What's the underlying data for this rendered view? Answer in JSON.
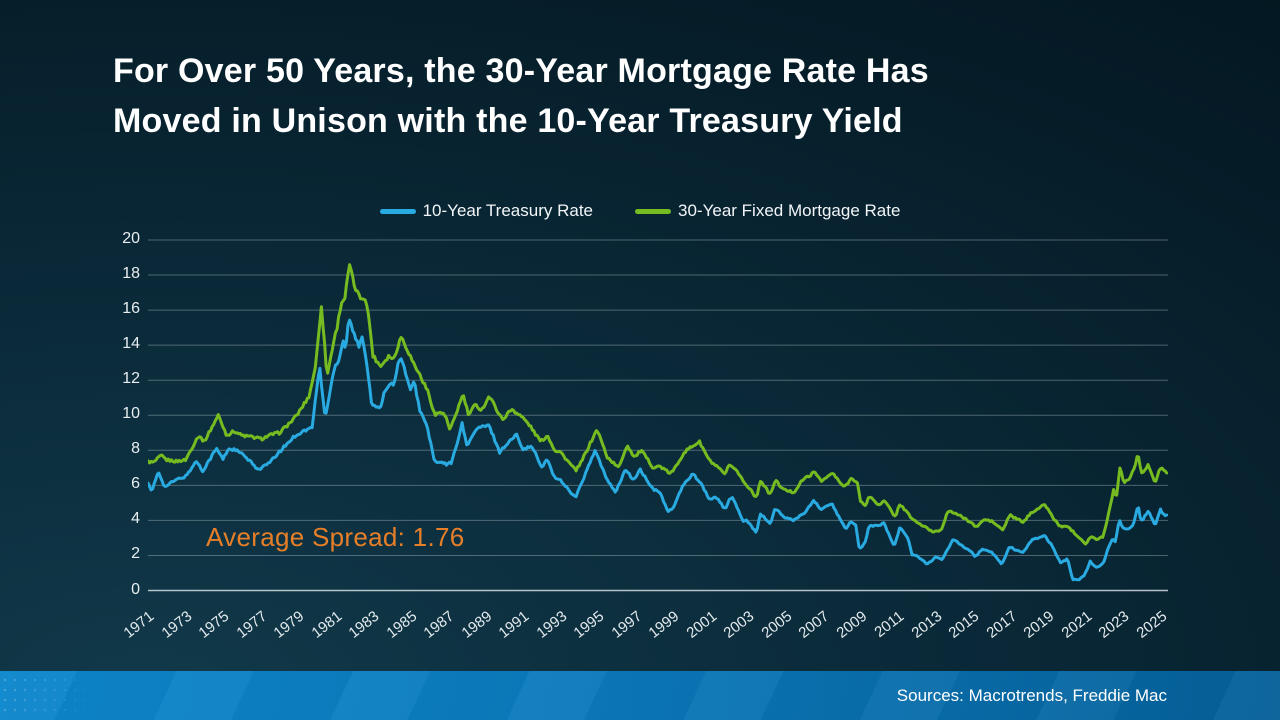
{
  "slide": {
    "title_lines": [
      "For Over 50 Years, the 30-Year Mortgage Rate Has",
      "Moved in Unison with the 10-Year Treasury Yield"
    ],
    "annotation": {
      "text": "Average Spread: 1.76",
      "color": "#E77F28"
    },
    "footer": {
      "sources": "Sources: Macrotrends, Freddie Mac",
      "bar_color_left": "#0C87CC",
      "bar_color_right": "#056099"
    },
    "background_color": "#0a2938"
  },
  "chart_data": {
    "type": "line",
    "title": "",
    "xlabel": "",
    "ylabel": "",
    "x_axis": {
      "start": 1971,
      "end": 2025.4,
      "tick_years": [
        1971,
        1973,
        1975,
        1977,
        1979,
        1981,
        1983,
        1985,
        1987,
        1989,
        1991,
        1993,
        1995,
        1997,
        1999,
        2001,
        2003,
        2005,
        2007,
        2009,
        2011,
        2013,
        2015,
        2017,
        2019,
        2021,
        2023,
        2025
      ]
    },
    "y_axis": {
      "min": 0,
      "max": 20,
      "ticks": [
        0,
        2,
        4,
        6,
        8,
        10,
        12,
        14,
        16,
        18,
        20
      ]
    },
    "grid": true,
    "legend_position": "top-center",
    "annotation": "Average Spread: 1.76",
    "series": [
      {
        "name": "10-Year Treasury Rate",
        "color": "#29ABE2",
        "points": [
          [
            1971.0,
            6.2
          ],
          [
            1971.2,
            5.6
          ],
          [
            1971.55,
            6.8
          ],
          [
            1971.9,
            5.9
          ],
          [
            1972.3,
            6.2
          ],
          [
            1972.7,
            6.4
          ],
          [
            1973.0,
            6.5
          ],
          [
            1973.6,
            7.4
          ],
          [
            1973.9,
            6.8
          ],
          [
            1974.3,
            7.5
          ],
          [
            1974.65,
            8.1
          ],
          [
            1975.0,
            7.5
          ],
          [
            1975.3,
            8.1
          ],
          [
            1975.7,
            8.0
          ],
          [
            1976.0,
            7.8
          ],
          [
            1976.9,
            6.9
          ],
          [
            1977.5,
            7.3
          ],
          [
            1978.0,
            7.9
          ],
          [
            1978.8,
            8.8
          ],
          [
            1979.3,
            9.1
          ],
          [
            1979.75,
            9.3
          ],
          [
            1980.15,
            12.8
          ],
          [
            1980.45,
            9.8
          ],
          [
            1980.95,
            12.8
          ],
          [
            1981.2,
            13.2
          ],
          [
            1981.4,
            14.3
          ],
          [
            1981.55,
            13.8
          ],
          [
            1981.7,
            15.6
          ],
          [
            1982.0,
            14.6
          ],
          [
            1982.25,
            13.9
          ],
          [
            1982.45,
            14.5
          ],
          [
            1982.75,
            12.3
          ],
          [
            1982.95,
            10.5
          ],
          [
            1983.15,
            10.5
          ],
          [
            1983.45,
            10.4
          ],
          [
            1983.6,
            11.4
          ],
          [
            1983.9,
            11.8
          ],
          [
            1984.1,
            11.8
          ],
          [
            1984.45,
            13.4
          ],
          [
            1984.75,
            12.4
          ],
          [
            1985.0,
            11.4
          ],
          [
            1985.2,
            11.9
          ],
          [
            1985.5,
            10.3
          ],
          [
            1985.9,
            9.3
          ],
          [
            1986.3,
            7.3
          ],
          [
            1986.65,
            7.3
          ],
          [
            1986.9,
            7.2
          ],
          [
            1987.2,
            7.3
          ],
          [
            1987.75,
            9.5
          ],
          [
            1988.0,
            8.3
          ],
          [
            1988.6,
            9.3
          ],
          [
            1989.2,
            9.4
          ],
          [
            1989.75,
            7.9
          ],
          [
            1990.0,
            8.2
          ],
          [
            1990.65,
            8.9
          ],
          [
            1991.0,
            8.1
          ],
          [
            1991.5,
            8.2
          ],
          [
            1992.0,
            7.0
          ],
          [
            1992.3,
            7.5
          ],
          [
            1992.7,
            6.4
          ],
          [
            1993.0,
            6.3
          ],
          [
            1993.8,
            5.3
          ],
          [
            1994.0,
            5.8
          ],
          [
            1994.85,
            8.0
          ],
          [
            1995.4,
            6.5
          ],
          [
            1995.95,
            5.6
          ],
          [
            1996.45,
            6.9
          ],
          [
            1996.9,
            6.3
          ],
          [
            1997.25,
            6.9
          ],
          [
            1997.9,
            5.8
          ],
          [
            1998.3,
            5.6
          ],
          [
            1998.75,
            4.5
          ],
          [
            1999.0,
            4.7
          ],
          [
            1999.5,
            5.9
          ],
          [
            2000.05,
            6.7
          ],
          [
            2000.5,
            6.1
          ],
          [
            2000.95,
            5.2
          ],
          [
            2001.35,
            5.3
          ],
          [
            2001.8,
            4.6
          ],
          [
            2001.95,
            5.1
          ],
          [
            2002.2,
            5.3
          ],
          [
            2002.75,
            3.9
          ],
          [
            2002.95,
            4.0
          ],
          [
            2003.45,
            3.3
          ],
          [
            2003.65,
            4.4
          ],
          [
            2004.2,
            3.8
          ],
          [
            2004.45,
            4.7
          ],
          [
            2004.9,
            4.2
          ],
          [
            2005.4,
            4.0
          ],
          [
            2005.7,
            4.2
          ],
          [
            2006.0,
            4.4
          ],
          [
            2006.5,
            5.1
          ],
          [
            2006.95,
            4.6
          ],
          [
            2007.45,
            5.0
          ],
          [
            2007.9,
            4.1
          ],
          [
            2008.2,
            3.5
          ],
          [
            2008.45,
            3.9
          ],
          [
            2008.75,
            3.7
          ],
          [
            2008.95,
            2.3
          ],
          [
            2009.3,
            2.9
          ],
          [
            2009.45,
            3.7
          ],
          [
            2010.0,
            3.7
          ],
          [
            2010.25,
            3.85
          ],
          [
            2010.8,
            2.5
          ],
          [
            2011.1,
            3.6
          ],
          [
            2011.55,
            3.0
          ],
          [
            2011.75,
            2.0
          ],
          [
            2012.0,
            2.0
          ],
          [
            2012.55,
            1.5
          ],
          [
            2013.0,
            1.9
          ],
          [
            2013.35,
            1.75
          ],
          [
            2013.95,
            2.95
          ],
          [
            2014.5,
            2.5
          ],
          [
            2014.95,
            2.2
          ],
          [
            2015.1,
            1.9
          ],
          [
            2015.5,
            2.35
          ],
          [
            2016.0,
            2.2
          ],
          [
            2016.55,
            1.5
          ],
          [
            2016.95,
            2.5
          ],
          [
            2017.3,
            2.3
          ],
          [
            2017.7,
            2.2
          ],
          [
            2018.1,
            2.85
          ],
          [
            2018.8,
            3.15
          ],
          [
            2019.2,
            2.6
          ],
          [
            2019.65,
            1.6
          ],
          [
            2020.05,
            1.8
          ],
          [
            2020.3,
            0.65
          ],
          [
            2020.65,
            0.6
          ],
          [
            2020.95,
            0.9
          ],
          [
            2021.25,
            1.65
          ],
          [
            2021.6,
            1.3
          ],
          [
            2021.95,
            1.55
          ],
          [
            2022.2,
            2.4
          ],
          [
            2022.45,
            3.0
          ],
          [
            2022.6,
            2.8
          ],
          [
            2022.8,
            4.0
          ],
          [
            2023.05,
            3.5
          ],
          [
            2023.3,
            3.5
          ],
          [
            2023.55,
            3.8
          ],
          [
            2023.8,
            4.85
          ],
          [
            2023.95,
            4.0
          ],
          [
            2024.1,
            4.1
          ],
          [
            2024.35,
            4.6
          ],
          [
            2024.7,
            3.7
          ],
          [
            2025.0,
            4.6
          ],
          [
            2025.2,
            4.3
          ],
          [
            2025.4,
            4.25
          ]
        ]
      },
      {
        "name": "30-Year Fixed Mortgage Rate",
        "color": "#76BC21",
        "points": [
          [
            1971.0,
            7.35
          ],
          [
            1971.3,
            7.3
          ],
          [
            1971.7,
            7.7
          ],
          [
            1972.0,
            7.45
          ],
          [
            1972.5,
            7.37
          ],
          [
            1973.0,
            7.45
          ],
          [
            1973.7,
            8.85
          ],
          [
            1974.0,
            8.5
          ],
          [
            1974.75,
            10.0
          ],
          [
            1975.2,
            8.85
          ],
          [
            1975.6,
            9.1
          ],
          [
            1976.0,
            8.85
          ],
          [
            1976.6,
            8.75
          ],
          [
            1977.05,
            8.65
          ],
          [
            1977.6,
            8.9
          ],
          [
            1978.0,
            9.0
          ],
          [
            1978.7,
            9.7
          ],
          [
            1979.0,
            10.1
          ],
          [
            1979.6,
            11.1
          ],
          [
            1979.95,
            12.9
          ],
          [
            1980.25,
            16.3
          ],
          [
            1980.55,
            12.2
          ],
          [
            1980.9,
            14.2
          ],
          [
            1981.1,
            15.1
          ],
          [
            1981.3,
            16.4
          ],
          [
            1981.5,
            16.7
          ],
          [
            1981.75,
            18.6
          ],
          [
            1982.0,
            17.4
          ],
          [
            1982.3,
            16.7
          ],
          [
            1982.6,
            16.7
          ],
          [
            1982.8,
            15.4
          ],
          [
            1983.0,
            13.4
          ],
          [
            1983.4,
            12.8
          ],
          [
            1983.85,
            13.4
          ],
          [
            1984.1,
            13.2
          ],
          [
            1984.5,
            14.5
          ],
          [
            1984.9,
            13.6
          ],
          [
            1985.1,
            13.1
          ],
          [
            1985.45,
            12.4
          ],
          [
            1985.95,
            11.3
          ],
          [
            1986.3,
            10.0
          ],
          [
            1986.6,
            10.2
          ],
          [
            1986.9,
            9.9
          ],
          [
            1987.1,
            9.1
          ],
          [
            1987.8,
            11.2
          ],
          [
            1988.1,
            10.0
          ],
          [
            1988.45,
            10.6
          ],
          [
            1988.8,
            10.3
          ],
          [
            1989.2,
            11.1
          ],
          [
            1989.9,
            9.75
          ],
          [
            1990.4,
            10.35
          ],
          [
            1990.9,
            9.95
          ],
          [
            1991.3,
            9.5
          ],
          [
            1991.95,
            8.5
          ],
          [
            1992.3,
            8.85
          ],
          [
            1992.7,
            8.0
          ],
          [
            1993.0,
            7.9
          ],
          [
            1993.8,
            6.85
          ],
          [
            1994.0,
            7.1
          ],
          [
            1994.95,
            9.2
          ],
          [
            1995.5,
            7.6
          ],
          [
            1996.1,
            7.0
          ],
          [
            1996.55,
            8.3
          ],
          [
            1996.95,
            7.6
          ],
          [
            1997.3,
            8.0
          ],
          [
            1997.95,
            7.0
          ],
          [
            1998.3,
            7.1
          ],
          [
            1998.8,
            6.7
          ],
          [
            1999.0,
            6.8
          ],
          [
            1999.6,
            7.9
          ],
          [
            2000.4,
            8.5
          ],
          [
            2000.95,
            7.4
          ],
          [
            2001.3,
            7.1
          ],
          [
            2001.8,
            6.6
          ],
          [
            2001.95,
            7.1
          ],
          [
            2002.3,
            7.0
          ],
          [
            2002.9,
            6.0
          ],
          [
            2003.1,
            5.85
          ],
          [
            2003.45,
            5.25
          ],
          [
            2003.65,
            6.3
          ],
          [
            2004.2,
            5.45
          ],
          [
            2004.45,
            6.3
          ],
          [
            2004.9,
            5.75
          ],
          [
            2005.45,
            5.6
          ],
          [
            2005.9,
            6.3
          ],
          [
            2006.55,
            6.75
          ],
          [
            2006.95,
            6.25
          ],
          [
            2007.5,
            6.7
          ],
          [
            2007.95,
            6.1
          ],
          [
            2008.15,
            5.9
          ],
          [
            2008.55,
            6.45
          ],
          [
            2008.85,
            6.1
          ],
          [
            2009.0,
            5.05
          ],
          [
            2009.3,
            4.85
          ],
          [
            2009.45,
            5.4
          ],
          [
            2009.95,
            4.9
          ],
          [
            2010.3,
            5.1
          ],
          [
            2010.85,
            4.2
          ],
          [
            2011.1,
            4.95
          ],
          [
            2011.75,
            4.1
          ],
          [
            2012.0,
            3.9
          ],
          [
            2012.85,
            3.35
          ],
          [
            2013.3,
            3.45
          ],
          [
            2013.65,
            4.5
          ],
          [
            2014.0,
            4.45
          ],
          [
            2014.95,
            3.85
          ],
          [
            2015.15,
            3.6
          ],
          [
            2015.6,
            4.05
          ],
          [
            2016.0,
            3.95
          ],
          [
            2016.6,
            3.45
          ],
          [
            2016.95,
            4.3
          ],
          [
            2017.3,
            4.1
          ],
          [
            2017.7,
            3.9
          ],
          [
            2018.1,
            4.45
          ],
          [
            2018.85,
            4.9
          ],
          [
            2019.3,
            4.1
          ],
          [
            2019.7,
            3.6
          ],
          [
            2020.0,
            3.7
          ],
          [
            2020.4,
            3.3
          ],
          [
            2020.7,
            3.0
          ],
          [
            2021.0,
            2.67
          ],
          [
            2021.3,
            3.1
          ],
          [
            2021.6,
            2.88
          ],
          [
            2021.95,
            3.1
          ],
          [
            2022.3,
            4.7
          ],
          [
            2022.5,
            5.8
          ],
          [
            2022.65,
            5.3
          ],
          [
            2022.85,
            7.1
          ],
          [
            2023.05,
            6.15
          ],
          [
            2023.35,
            6.4
          ],
          [
            2023.6,
            7.0
          ],
          [
            2023.8,
            7.8
          ],
          [
            2024.0,
            6.65
          ],
          [
            2024.15,
            6.9
          ],
          [
            2024.35,
            7.2
          ],
          [
            2024.7,
            6.1
          ],
          [
            2024.95,
            6.9
          ],
          [
            2025.1,
            7.0
          ],
          [
            2025.25,
            6.75
          ],
          [
            2025.4,
            6.6
          ]
        ]
      }
    ]
  }
}
